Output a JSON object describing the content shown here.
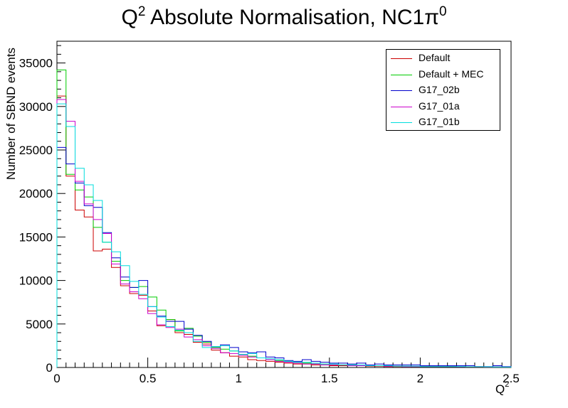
{
  "title": {
    "main": "Q",
    "sup": "2",
    "rest": " Absolute Normalisation, NC1π",
    "sup2": "0"
  },
  "chart_data": {
    "type": "histogram",
    "title": "Q² Absolute Normalisation, NC1π⁰",
    "xlabel": {
      "text": "Q",
      "sup": "2"
    },
    "ylabel": "Number of SBND events",
    "xlim": [
      0,
      2.5
    ],
    "ylim": [
      0,
      37500
    ],
    "bin_width": 0.05,
    "x_ticks": [
      "0",
      "0.5",
      "1",
      "1.5",
      "2",
      "2.5"
    ],
    "y_ticks": [
      "0",
      "5000",
      "10000",
      "15000",
      "20000",
      "25000",
      "30000",
      "35000"
    ],
    "legend_position": "top-right",
    "series": [
      {
        "name": "Default",
        "color": "#cc0000",
        "values": [
          31200,
          22000,
          18100,
          17300,
          13400,
          13600,
          11500,
          9400,
          8500,
          8300,
          6500,
          4800,
          5500,
          4000,
          3800,
          2900,
          2700,
          2000,
          1700,
          1300,
          1200,
          900,
          800,
          700,
          600,
          500,
          400,
          400,
          300,
          300,
          200,
          200,
          200,
          200,
          150,
          150,
          100,
          100,
          100,
          100,
          100,
          100,
          80,
          80,
          80,
          60,
          60,
          60,
          60,
          60
        ]
      },
      {
        "name": "Default + MEC",
        "color": "#00cc00",
        "values": [
          34200,
          22200,
          20400,
          19600,
          16100,
          14400,
          12200,
          10000,
          9200,
          9300,
          8100,
          6600,
          5500,
          4200,
          4500,
          3600,
          2900,
          2300,
          2100,
          1900,
          1500,
          1300,
          1100,
          900,
          800,
          700,
          600,
          500,
          400,
          400,
          300,
          300,
          300,
          200,
          200,
          200,
          200,
          150,
          150,
          100,
          100,
          100,
          100,
          100,
          80,
          80,
          80,
          60,
          60,
          60
        ]
      },
      {
        "name": "G17_02b",
        "color": "#0000cc",
        "values": [
          25300,
          23400,
          21200,
          18600,
          18400,
          15500,
          12600,
          10400,
          9200,
          10000,
          7000,
          5900,
          5300,
          5300,
          4400,
          3700,
          3000,
          2400,
          2600,
          2300,
          1800,
          1700,
          1800,
          1200,
          1100,
          800,
          700,
          900,
          700,
          600,
          500,
          500,
          400,
          500,
          300,
          400,
          300,
          300,
          300,
          300,
          200,
          200,
          200,
          200,
          200,
          200,
          100,
          100,
          200,
          100
        ]
      },
      {
        "name": "G17_01a",
        "color": "#cc00cc",
        "values": [
          30800,
          28300,
          21400,
          18800,
          17000,
          15400,
          11900,
          9600,
          8700,
          7900,
          6200,
          4900,
          4600,
          4400,
          3500,
          3200,
          2500,
          2200,
          1700,
          1600,
          1400,
          1200,
          1100,
          900,
          700,
          600,
          500,
          400,
          400,
          300,
          300,
          300,
          200,
          200,
          200,
          200,
          150,
          150,
          100,
          100,
          100,
          100,
          100,
          100,
          80,
          80,
          80,
          60,
          60,
          60
        ]
      },
      {
        "name": "G17_01b",
        "color": "#00dddd",
        "values": [
          30300,
          27700,
          22900,
          21000,
          19200,
          14400,
          13300,
          11700,
          9900,
          8400,
          7000,
          5800,
          4700,
          4300,
          4000,
          3000,
          2300,
          2400,
          2500,
          1900,
          1500,
          1600,
          1100,
          1000,
          900,
          700,
          600,
          600,
          500,
          400,
          400,
          300,
          300,
          300,
          200,
          200,
          200,
          150,
          150,
          150,
          100,
          100,
          100,
          100,
          100,
          80,
          80,
          80,
          60,
          60
        ]
      }
    ]
  }
}
